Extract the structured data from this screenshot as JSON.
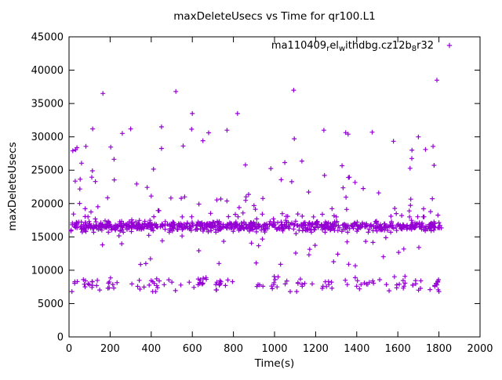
{
  "chart_data": {
    "type": "scatter",
    "title": "maxDeleteUsecs vs Time for qr100.L1",
    "xlabel": "Time(s)",
    "ylabel": "maxDeleteUsecs",
    "xlim": [
      0,
      2000
    ],
    "ylim": [
      0,
      45000
    ],
    "x_ticks": [
      0,
      200,
      400,
      600,
      800,
      1000,
      1200,
      1400,
      1600,
      1800,
      2000
    ],
    "y_ticks": [
      0,
      5000,
      10000,
      15000,
      20000,
      25000,
      30000,
      35000,
      40000,
      45000
    ],
    "grid": false,
    "legend_position": "top-right-inside",
    "series_name": "ma110409_rel_withdbg.cz12b_8r32",
    "legend_parts": [
      {
        "t": "ma110409"
      },
      {
        "t": "r",
        "sub": true
      },
      {
        "t": "el"
      },
      {
        "t": "w",
        "sub": true
      },
      {
        "t": "ithdbg.cz12b"
      },
      {
        "t": "8",
        "sub": true
      },
      {
        "t": "r32"
      }
    ],
    "marker": {
      "shape": "plus",
      "color": "#9400d3"
    },
    "generation": {
      "seed": 1337,
      "bands": [
        {
          "name": "main-band",
          "count": 760,
          "x": [
            8,
            1812
          ],
          "y": {
            "dist": "gauss",
            "mean": 16600,
            "sd": 380,
            "clamp": [
              15700,
              17700
            ]
          }
        },
        {
          "name": "lower-band-base",
          "count": 60,
          "x": [
            10,
            1810
          ],
          "y": {
            "dist": "gauss",
            "mean": 7900,
            "sd": 600,
            "clamp": [
              6800,
              9700
            ]
          }
        },
        {
          "name": "lower-band-clusters",
          "clusters": {
            "centers": [
              95,
              215,
              430,
              640,
              730,
              1010,
              1120,
              1255,
              1420,
              1610,
              1700,
              1795
            ],
            "count": 7,
            "xspread": 28
          },
          "y": {
            "dist": "gauss",
            "mean": 7950,
            "sd": 550,
            "clamp": [
              6800,
              9700
            ]
          }
        },
        {
          "name": "mid-scatter",
          "count": 34,
          "x": [
            30,
            1790
          ],
          "y": {
            "dist": "uniform",
            "range": [
              10500,
              15500
            ]
          }
        },
        {
          "name": "upper-scatter",
          "count": 95,
          "x": [
            15,
            1805
          ],
          "y": {
            "dist": "power",
            "base": 18000,
            "span": 13500,
            "exp": 2.4,
            "clamp": [
              18000,
              32000
            ]
          }
        },
        {
          "name": "topleft-cluster",
          "count": 9,
          "x": [
            12,
            130
          ],
          "y": {
            "dist": "uniform",
            "range": [
              23000,
              29500
            ]
          }
        },
        {
          "name": "right-upper-cluster",
          "count": 6,
          "x": [
            1640,
            1800
          ],
          "y": {
            "dist": "uniform",
            "range": [
              19000,
              29000
            ]
          }
        }
      ],
      "outliers": [
        [
          165,
          36500
        ],
        [
          520,
          36800
        ],
        [
          1093,
          37000
        ],
        [
          1790,
          38500
        ],
        [
          600,
          33500
        ],
        [
          820,
          33500
        ],
        [
          450,
          31500
        ],
        [
          300,
          31200
        ],
        [
          1240,
          31000
        ],
        [
          1475,
          30700
        ],
        [
          115,
          31200
        ],
        [
          1700,
          30000
        ]
      ]
    }
  }
}
